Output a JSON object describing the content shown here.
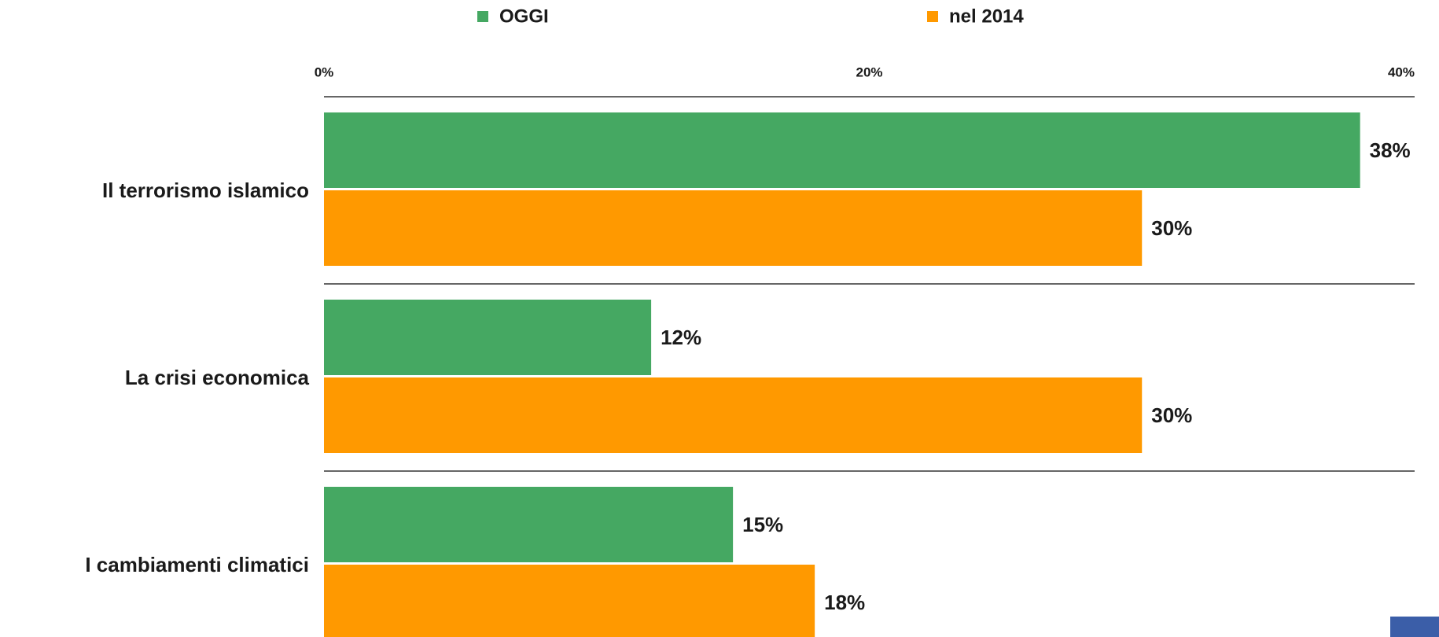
{
  "chart_data": {
    "type": "hbar",
    "categories": [
      "Il terrorismo islamico",
      "La crisi economica",
      "I cambiamenti climatici"
    ],
    "series": [
      {
        "name": "OGGI",
        "color": "#45a862",
        "values": [
          38,
          12,
          15
        ],
        "value_labels": [
          "38%",
          "12%",
          "15%"
        ]
      },
      {
        "name": "nel 2014",
        "color": "#ff9900",
        "values": [
          30,
          30,
          18
        ],
        "value_labels": [
          "30%",
          "30%",
          "18%"
        ]
      }
    ],
    "xlim": [
      0,
      40
    ],
    "xticks": [
      {
        "value": 0,
        "label": "0%"
      },
      {
        "value": 20,
        "label": "20%"
      },
      {
        "value": 40,
        "label": "40%"
      }
    ],
    "legend": "top"
  }
}
